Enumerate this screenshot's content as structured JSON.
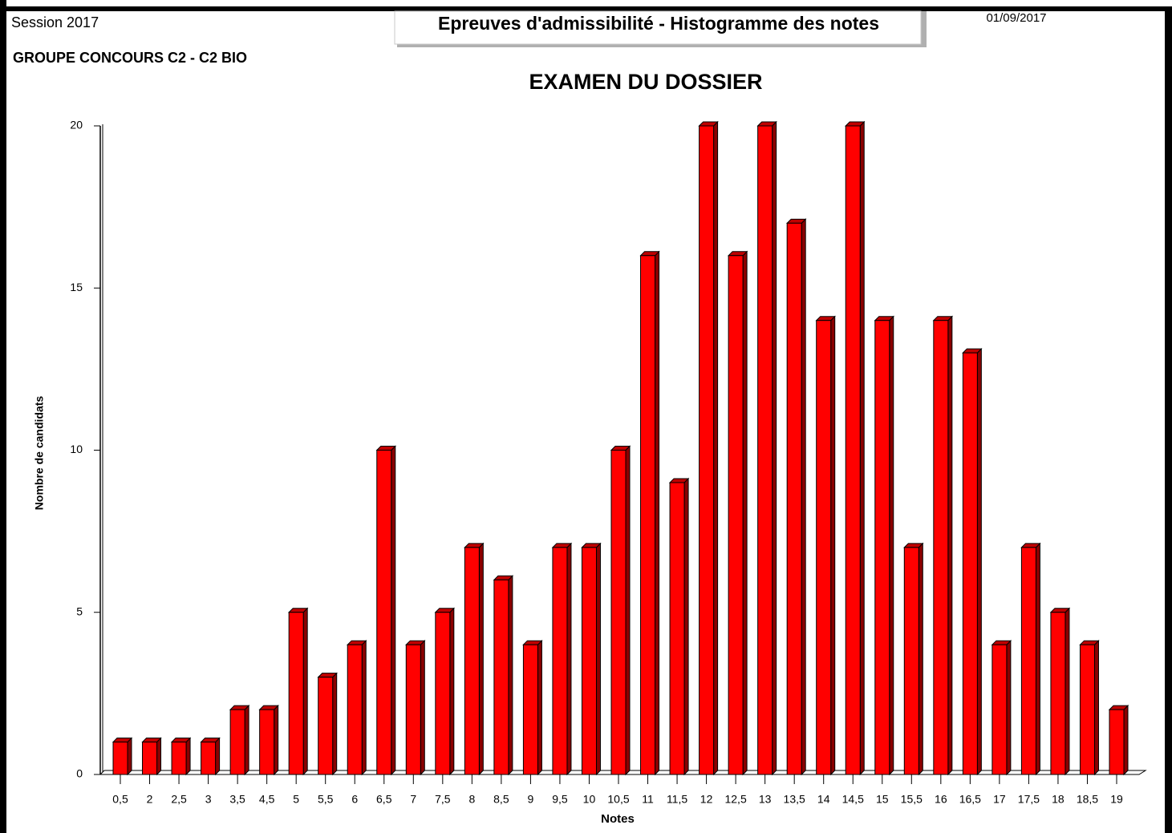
{
  "session": "Session 2017",
  "group": "GROUPE CONCOURS C2 - C2 BIO",
  "header": "Epreuves d'admissibilité - Histogramme des notes",
  "date": "01/09/2017",
  "chart_data": {
    "type": "bar",
    "title": "EXAMEN DU DOSSIER",
    "x_label": "Notes",
    "y_label": "Nombre de candidats",
    "categories": [
      "0,5",
      "2",
      "2,5",
      "3",
      "3,5",
      "4,5",
      "5",
      "5,5",
      "6",
      "6,5",
      "7",
      "7,5",
      "8",
      "8,5",
      "9",
      "9,5",
      "10",
      "10,5",
      "11",
      "11,5",
      "12",
      "12,5",
      "13",
      "13,5",
      "14",
      "14,5",
      "15",
      "15,5",
      "16",
      "16,5",
      "17",
      "17,5",
      "18",
      "18,5",
      "19"
    ],
    "values": [
      1,
      1,
      1,
      1,
      2,
      2,
      5,
      3,
      4,
      10,
      4,
      5,
      7,
      6,
      4,
      7,
      7,
      10,
      16,
      9,
      20,
      16,
      20,
      17,
      14,
      20,
      14,
      7,
      14,
      13,
      4,
      7,
      5,
      4,
      2
    ],
    "color": "#ff0000",
    "ylim": [
      0,
      20
    ],
    "yticks": [
      0,
      5,
      10,
      15,
      20
    ]
  }
}
